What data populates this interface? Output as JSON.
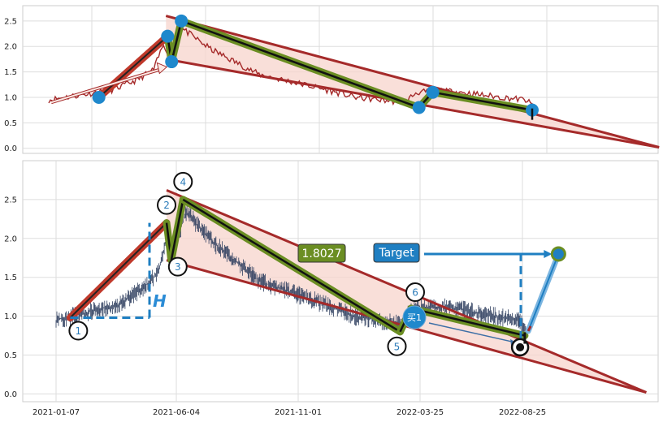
{
  "chart_data": [
    {
      "type": "line",
      "panel": "top",
      "ylim": [
        -0.1,
        2.8
      ],
      "y_ticks": [
        "0.0",
        "0.5",
        "1.0",
        "1.5",
        "2.0",
        "2.5"
      ],
      "grid": true,
      "price_color": "#a52a2a",
      "pivots": [
        {
          "date": "2021-03-10",
          "y": 1.0
        },
        {
          "date": "2021-06-03",
          "y": 2.2
        },
        {
          "date": "2021-06-08",
          "y": 1.7
        },
        {
          "date": "2021-06-20",
          "y": 2.5
        },
        {
          "date": "2022-04-10",
          "y": 0.8
        },
        {
          "date": "2022-04-27",
          "y": 1.1
        },
        {
          "date": "2022-08-28",
          "y": 0.75
        }
      ],
      "channel_upper": [
        {
          "date": "2021-06-01",
          "y": 2.6
        },
        {
          "date": "2023-02-01",
          "y": 0.02
        }
      ],
      "channel_lower": [
        {
          "date": "2021-06-01",
          "y": 1.75
        },
        {
          "date": "2023-02-01",
          "y": 0.02
        }
      ],
      "trend_arrow": [
        {
          "date": "2021-01-10",
          "y": 0.9
        },
        {
          "date": "2021-05-25",
          "y": 1.55
        }
      ]
    },
    {
      "type": "line",
      "panel": "bottom",
      "ylim": [
        -0.1,
        3.0
      ],
      "x_ticks": [
        "2021-01-07",
        "2021-06-04",
        "2021-11-01",
        "2022-03-25",
        "2022-08-25"
      ],
      "y_ticks": [
        "0.0",
        "0.5",
        "1.0",
        "1.5",
        "2.0",
        "2.5"
      ],
      "grid": true,
      "price_color": "#2f3f5f",
      "pivots": [
        {
          "label": "1",
          "date": "2021-01-25",
          "y": 0.98
        },
        {
          "label": "2",
          "date": "2021-05-28",
          "y": 2.2
        },
        {
          "label": "3",
          "date": "2021-06-03",
          "y": 1.72
        },
        {
          "label": "4",
          "date": "2021-06-18",
          "y": 2.5
        },
        {
          "label": "5",
          "date": "2022-03-22",
          "y": 0.8
        },
        {
          "label": "6",
          "date": "2022-04-05",
          "y": 1.1
        },
        {
          "label": "",
          "date": "2022-08-28",
          "y": 0.75
        }
      ],
      "channel_upper": [
        {
          "date": "2021-05-28",
          "y": 2.62
        },
        {
          "date": "2023-01-30",
          "y": 0.02
        }
      ],
      "channel_lower": [
        {
          "date": "2021-05-28",
          "y": 1.72
        },
        {
          "date": "2023-01-30",
          "y": 0.02
        }
      ],
      "breakout": {
        "date": "2022-08-22",
        "y": 0.6
      },
      "target": {
        "date": "2022-10-10",
        "y": 1.8
      },
      "annotations": {
        "pattern_value": "1.8027",
        "target_label": "Target",
        "buy_label": "买1",
        "height_label": "H"
      }
    }
  ],
  "colors": {
    "price_top": "#a52a2a",
    "price_bottom": "#2f3f5f",
    "channel": "#a52a2a",
    "channel_fill": "#f7d4cc",
    "zigzag_green": "#6b8e23",
    "pivot_blue": "#1f88cc",
    "target_green_box": "#6b8e23",
    "target_blue_box": "#1f7fc2"
  }
}
